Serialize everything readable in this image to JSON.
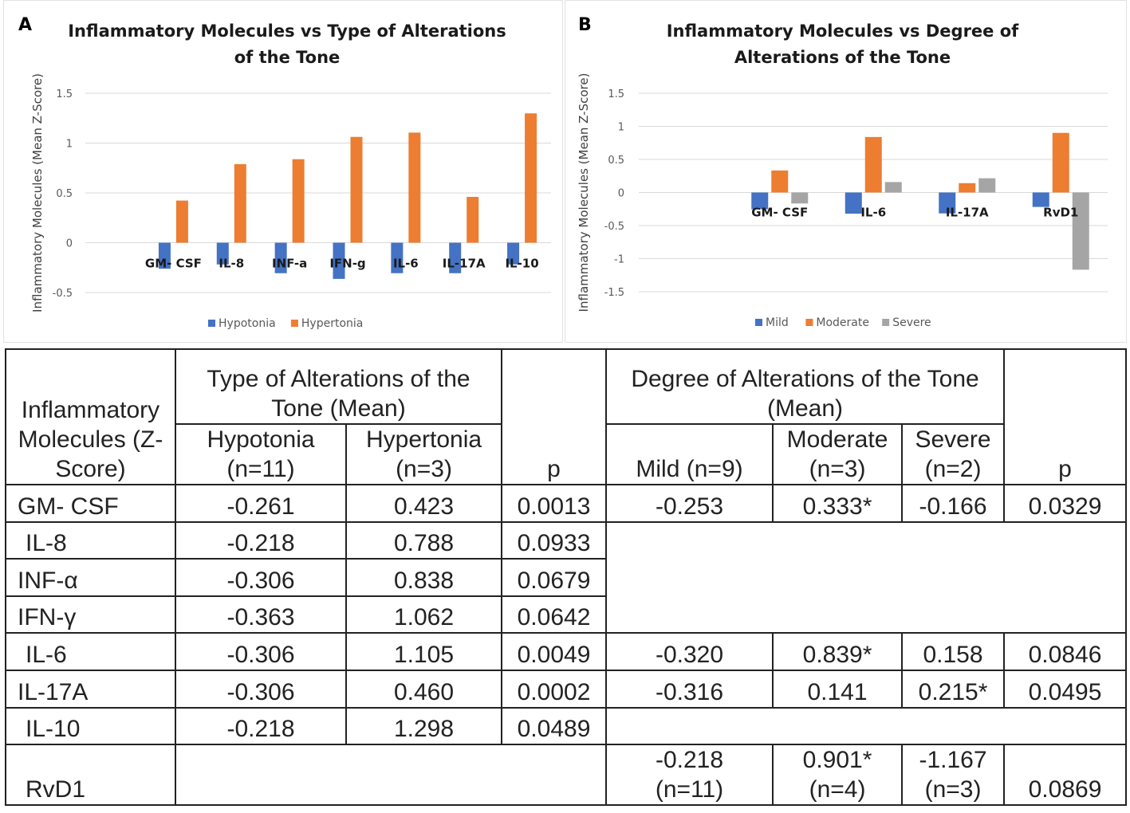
{
  "panelA": {
    "letter": "A",
    "title_line1": "Inflammatory Molecules vs Type of Alterations",
    "title_line2": "of the Tone"
  },
  "panelB": {
    "letter": "B",
    "title_line1": "Inflammatory Molecules vs Degree of",
    "title_line2": "Alterations of the Tone"
  },
  "chart_data": [
    {
      "type": "bar",
      "title": "Inflammatory Molecules vs Type of Alterations of the Tone",
      "ylabel": "Inflammatory Molecules (Mean Z-Score)",
      "xlabel": "",
      "ylim": [
        -0.5,
        1.5
      ],
      "yticks": [
        -0.5,
        0,
        0.5,
        1,
        1.5
      ],
      "ytick_labels": [
        "-0.5",
        "0",
        "0.5",
        "1",
        "1.5"
      ],
      "categories": [
        "GM- CSF",
        "IL-8",
        "INF-a",
        "IFN-g",
        "IL-6",
        "IL-17A",
        "IL-10"
      ],
      "series": [
        {
          "name": "Hypotonia",
          "color": "#4472C4",
          "values": [
            -0.261,
            -0.218,
            -0.306,
            -0.363,
            -0.306,
            -0.306,
            -0.218
          ]
        },
        {
          "name": "Hypertonia",
          "color": "#ED7D31",
          "values": [
            0.423,
            0.788,
            0.838,
            1.062,
            1.105,
            0.46,
            1.298
          ]
        }
      ],
      "legend": "bottom",
      "grid": true
    },
    {
      "type": "bar",
      "title": "Inflammatory Molecules vs Degree of Alterations of the Tone",
      "ylabel": "Inflammatory Molecules (Mean Z-Score)",
      "xlabel": "",
      "ylim": [
        -1.5,
        1.5
      ],
      "yticks": [
        -1.5,
        -1,
        -0.5,
        0,
        0.5,
        1,
        1.5
      ],
      "ytick_labels": [
        "-1.5",
        "-1",
        "-0.5",
        "0",
        "0.5",
        "1",
        "1.5"
      ],
      "categories": [
        "GM- CSF",
        "IL-6",
        "IL-17A",
        "RvD1"
      ],
      "series": [
        {
          "name": "Mild",
          "color": "#4472C4",
          "values": [
            -0.253,
            -0.32,
            -0.316,
            -0.218
          ]
        },
        {
          "name": "Moderate",
          "color": "#ED7D31",
          "values": [
            0.333,
            0.839,
            0.141,
            0.901
          ]
        },
        {
          "name": "Severe",
          "color": "#A5A5A5",
          "values": [
            -0.166,
            0.158,
            0.215,
            -1.167
          ]
        }
      ],
      "legend": "bottom",
      "grid": true
    }
  ],
  "table": {
    "corner": "Inflammatory Molecules (Z-Score)",
    "group_type": "Type of Alterations of the Tone (Mean)",
    "group_degree": "Degree of Alterations of the Tone (Mean)",
    "h_hypotonia": "Hypotonia (n=11)",
    "h_hypertonia": "Hypertonia (n=3)",
    "h_p1": "p",
    "h_mild": "Mild (n=9)",
    "h_moderate": "Moderate (n=3)",
    "h_severe": "Severe (n=2)",
    "h_p2": "p",
    "r_gmcsf": {
      "name": "GM- CSF",
      "hypo": "-0.261",
      "hyper": "0.423",
      "p1": "0.0013",
      "mild": "-0.253",
      "moderate": "0.333*",
      "severe": "-0.166",
      "p2": "0.0329"
    },
    "r_il8": {
      "name": "IL-8",
      "hypo": "-0.218",
      "hyper": "0.788",
      "p1": "0.0933"
    },
    "r_infa": {
      "name": "INF-α",
      "hypo": "-0.306",
      "hyper": "0.838",
      "p1": "0.0679"
    },
    "r_ifng": {
      "name": "IFN-γ",
      "hypo": "-0.363",
      "hyper": "1.062",
      "p1": "0.0642"
    },
    "r_il6": {
      "name": "IL-6",
      "hypo": "-0.306",
      "hyper": "1.105",
      "p1": "0.0049",
      "mild": "-0.320",
      "moderate": "0.839*",
      "severe": "0.158",
      "p2": "0.0846"
    },
    "r_il17a": {
      "name": "IL-17A",
      "hypo": "-0.306",
      "hyper": "0.460",
      "p1": "0.0002",
      "mild": "-0.316",
      "moderate": "0.141",
      "severe": "0.215*",
      "p2": "0.0495"
    },
    "r_il10": {
      "name": "IL-10",
      "hypo": "-0.218",
      "hyper": "1.298",
      "p1": "0.0489"
    },
    "r_rvd1": {
      "name": "RvD1",
      "mild_v": "-0.218",
      "mild_n": "(n=11)",
      "moderate_v": "0.901*",
      "moderate_n": "(n=4)",
      "severe_v": "-1.167",
      "severe_n": "(n=3)",
      "p2": "0.0869"
    }
  }
}
